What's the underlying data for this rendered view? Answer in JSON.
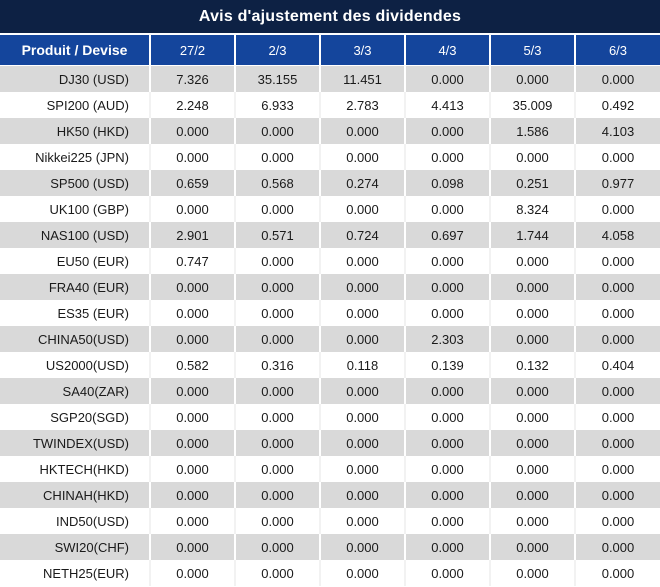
{
  "title": "Avis d'ajustement des dividendes",
  "colors": {
    "title_bg": "#0d2144",
    "header_bg": "#14459c",
    "row_gray": "#d9d9d9",
    "row_white": "#ffffff",
    "zero_value_text": "#1a1a1a",
    "nonzero_value_text": "#e02626",
    "header_text": "#ffffff"
  },
  "table": {
    "columns": [
      "Produit / Devise",
      "27/2",
      "2/3",
      "3/3",
      "4/3",
      "5/3",
      "6/3"
    ],
    "rows": [
      {
        "product": "DJ30 (USD)",
        "values": [
          "7.326",
          "35.155",
          "11.451",
          "0.000",
          "0.000",
          "0.000"
        ]
      },
      {
        "product": "SPI200 (AUD)",
        "values": [
          "2.248",
          "6.933",
          "2.783",
          "4.413",
          "35.009",
          "0.492"
        ]
      },
      {
        "product": "HK50 (HKD)",
        "values": [
          "0.000",
          "0.000",
          "0.000",
          "0.000",
          "1.586",
          "4.103"
        ]
      },
      {
        "product": "Nikkei225 (JPN)",
        "values": [
          "0.000",
          "0.000",
          "0.000",
          "0.000",
          "0.000",
          "0.000"
        ]
      },
      {
        "product": "SP500 (USD)",
        "values": [
          "0.659",
          "0.568",
          "0.274",
          "0.098",
          "0.251",
          "0.977"
        ]
      },
      {
        "product": "UK100 (GBP)",
        "values": [
          "0.000",
          "0.000",
          "0.000",
          "0.000",
          "8.324",
          "0.000"
        ]
      },
      {
        "product": "NAS100 (USD)",
        "values": [
          "2.901",
          "0.571",
          "0.724",
          "0.697",
          "1.744",
          "4.058"
        ]
      },
      {
        "product": "EU50 (EUR)",
        "values": [
          "0.747",
          "0.000",
          "0.000",
          "0.000",
          "0.000",
          "0.000"
        ]
      },
      {
        "product": "FRA40 (EUR)",
        "values": [
          "0.000",
          "0.000",
          "0.000",
          "0.000",
          "0.000",
          "0.000"
        ]
      },
      {
        "product": "ES35 (EUR)",
        "values": [
          "0.000",
          "0.000",
          "0.000",
          "0.000",
          "0.000",
          "0.000"
        ]
      },
      {
        "product": "CHINA50(USD)",
        "values": [
          "0.000",
          "0.000",
          "0.000",
          "2.303",
          "0.000",
          "0.000"
        ]
      },
      {
        "product": "US2000(USD)",
        "values": [
          "0.582",
          "0.316",
          "0.118",
          "0.139",
          "0.132",
          "0.404"
        ]
      },
      {
        "product": "SA40(ZAR)",
        "values": [
          "0.000",
          "0.000",
          "0.000",
          "0.000",
          "0.000",
          "0.000"
        ]
      },
      {
        "product": "SGP20(SGD)",
        "values": [
          "0.000",
          "0.000",
          "0.000",
          "0.000",
          "0.000",
          "0.000"
        ]
      },
      {
        "product": "TWINDEX(USD)",
        "values": [
          "0.000",
          "0.000",
          "0.000",
          "0.000",
          "0.000",
          "0.000"
        ]
      },
      {
        "product": "HKTECH(HKD)",
        "values": [
          "0.000",
          "0.000",
          "0.000",
          "0.000",
          "0.000",
          "0.000"
        ]
      },
      {
        "product": "CHINAH(HKD)",
        "values": [
          "0.000",
          "0.000",
          "0.000",
          "0.000",
          "0.000",
          "0.000"
        ]
      },
      {
        "product": "IND50(USD)",
        "values": [
          "0.000",
          "0.000",
          "0.000",
          "0.000",
          "0.000",
          "0.000"
        ]
      },
      {
        "product": "SWI20(CHF)",
        "values": [
          "0.000",
          "0.000",
          "0.000",
          "0.000",
          "0.000",
          "0.000"
        ]
      },
      {
        "product": "NETH25(EUR)",
        "values": [
          "0.000",
          "0.000",
          "0.000",
          "0.000",
          "0.000",
          "0.000"
        ]
      }
    ]
  }
}
